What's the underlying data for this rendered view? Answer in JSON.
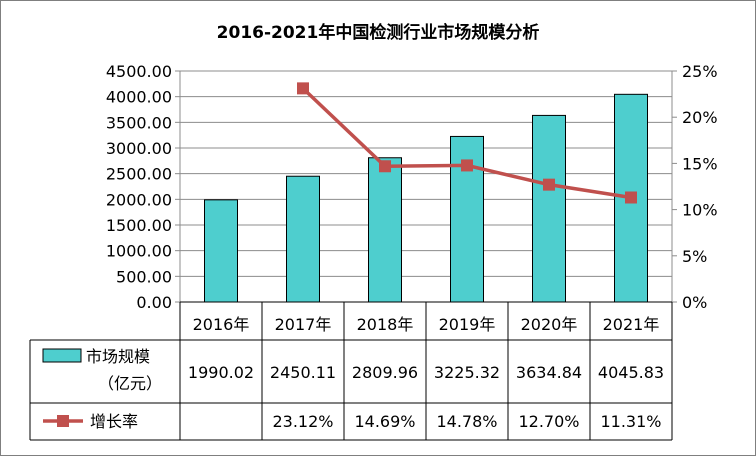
{
  "chart_data": {
    "type": "bar",
    "title": "2016-2021年中国检测行业市场规模分析",
    "categories": [
      "2016年",
      "2017年",
      "2018年",
      "2019年",
      "2020年",
      "2021年"
    ],
    "series": [
      {
        "name": "市场规模（亿元）",
        "type": "bar",
        "axis": "left",
        "values": [
          1990.02,
          2450.11,
          2809.96,
          3225.32,
          3634.84,
          4045.83
        ],
        "labels": [
          "1990.02",
          "2450.11",
          "2809.96",
          "3225.32",
          "3634.84",
          "4045.83"
        ],
        "color": "#4ECECE"
      },
      {
        "name": "增长率",
        "type": "line",
        "axis": "right",
        "values": [
          null,
          23.12,
          14.69,
          14.78,
          12.7,
          11.31
        ],
        "labels": [
          "",
          "23.12%",
          "14.69%",
          "14.78%",
          "12.70%",
          "11.31%"
        ],
        "color": "#C0504D"
      }
    ],
    "ylim_left": [
      0,
      4500
    ],
    "yticks_left": [
      "0.00",
      "500.00",
      "1000.00",
      "1500.00",
      "2000.00",
      "2500.00",
      "3000.00",
      "3500.00",
      "4000.00",
      "4500.00"
    ],
    "ylim_right": [
      0,
      25
    ],
    "yticks_right": [
      "0%",
      "5%",
      "10%",
      "15%",
      "20%",
      "25%"
    ],
    "grid": true,
    "legend": "data-table"
  }
}
